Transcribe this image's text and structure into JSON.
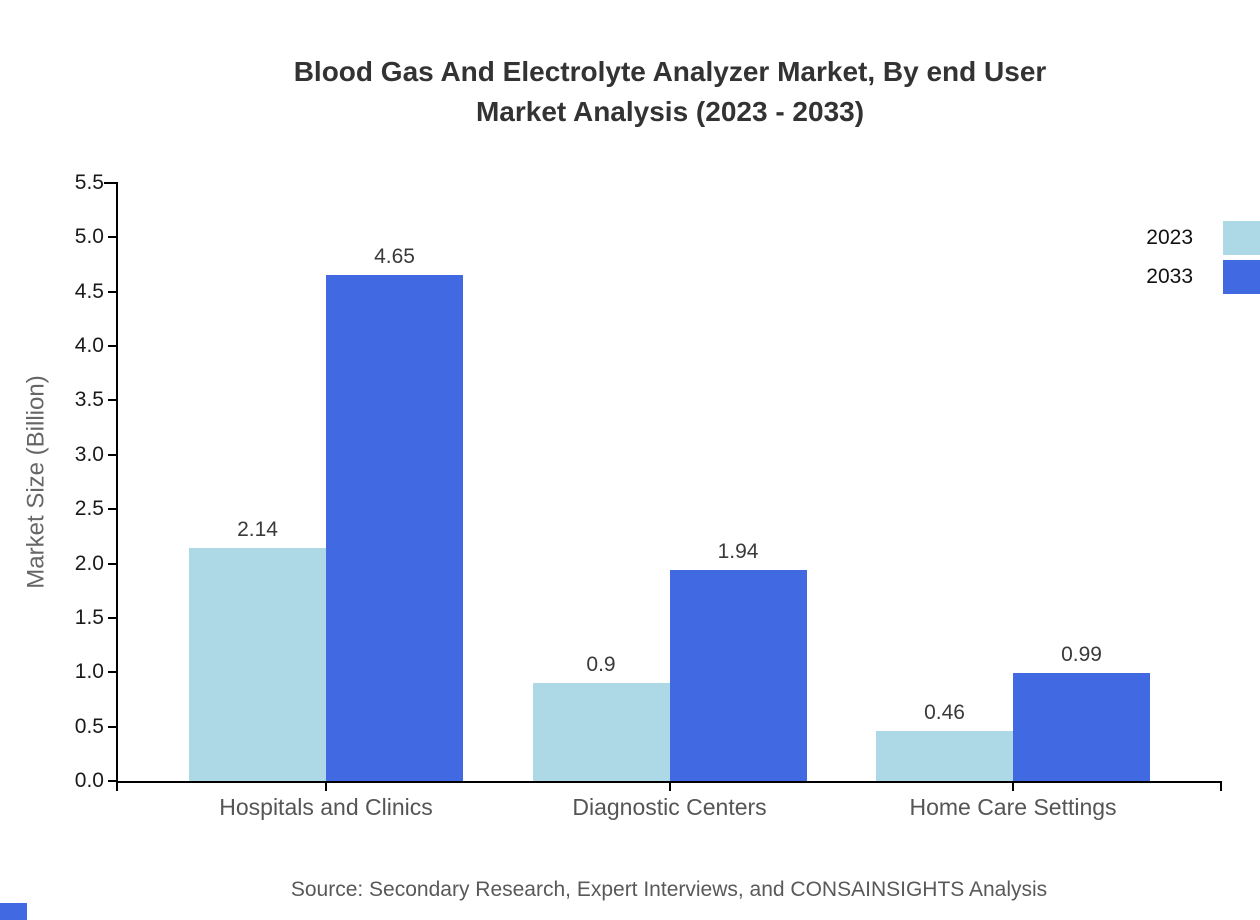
{
  "chart_data": {
    "type": "bar",
    "title": "Blood Gas And Electrolyte Analyzer Market, By end User Market Analysis (2023 - 2033)",
    "title_lines": [
      "Blood Gas And Electrolyte Analyzer Market, By end User",
      "Market Analysis (2023 - 2033)"
    ],
    "categories": [
      "Hospitals and Clinics",
      "Diagnostic Centers",
      "Home Care Settings"
    ],
    "series": [
      {
        "name": "2023",
        "color": "#ADD8E6",
        "values": [
          2.14,
          0.9,
          0.46
        ],
        "labels": [
          "2.14",
          "0.9",
          "0.46"
        ]
      },
      {
        "name": "2033",
        "color": "#4169E1",
        "values": [
          4.65,
          1.94,
          0.99
        ],
        "labels": [
          "4.65",
          "1.94",
          "0.99"
        ]
      }
    ],
    "xlabel": "",
    "ylabel": "Market Size (Billion)",
    "ylim": [
      0,
      5.5
    ],
    "yticks": [
      "0.0",
      "0.5",
      "1.0",
      "1.5",
      "2.0",
      "2.5",
      "3.0",
      "3.5",
      "4.0",
      "4.5",
      "5.0",
      "5.5"
    ],
    "grid": false,
    "legend_position": "top-right",
    "legend": [
      "2023",
      "2033"
    ],
    "source": "Source: Secondary Research, Expert Interviews, and CONSAINSIGHTS Analysis"
  },
  "colors": {
    "title": "#333333",
    "axis": "#000000",
    "tick_label": "#1a1a1a",
    "axis_label": "#666666",
    "category_label": "#555555",
    "value_label": "#3a3a3a",
    "legend_text": "#111111",
    "source": "#595959"
  }
}
